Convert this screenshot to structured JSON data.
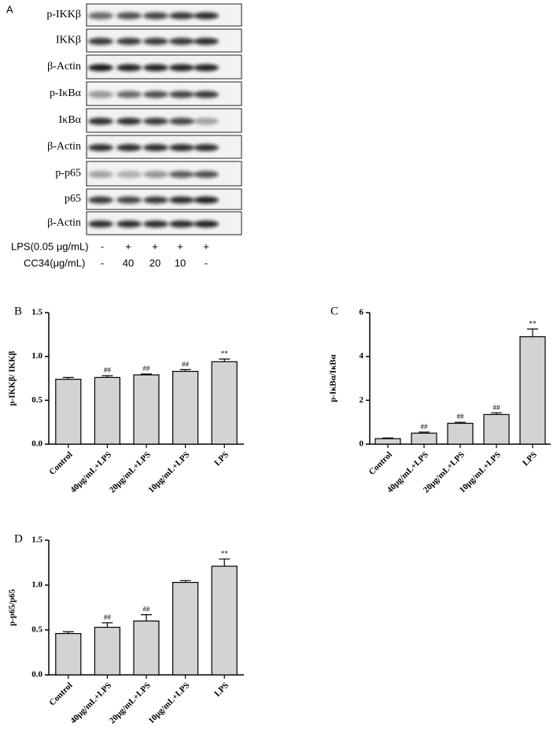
{
  "blot": {
    "panel": "A",
    "rows": [
      "p-IKKβ",
      "IKKβ",
      "β-Actin",
      "p-IκBα",
      "IκBα",
      "β-Actin",
      "p-p65",
      "p65",
      "β-Actin"
    ],
    "treatments": [
      {
        "label": "LPS(0.05 μg/mL)",
        "values": [
          "-",
          "+",
          "+",
          "+",
          "+"
        ]
      },
      {
        "label": "CC34(μg/mL)",
        "values": [
          "-",
          "40",
          "20",
          "10",
          "-"
        ]
      }
    ]
  },
  "chart_data": [
    {
      "type": "bar",
      "panel": "B",
      "y_label": "p-IKKβ/ IKKβ",
      "categories": [
        "Control",
        "40μg/mL+LPS",
        "20μg/mL+LPS",
        "10μg/mL+LPS",
        "LPS"
      ],
      "values": [
        0.74,
        0.76,
        0.79,
        0.83,
        0.94
      ],
      "errors": [
        0.02,
        0.02,
        0.01,
        0.02,
        0.03
      ],
      "annotations": [
        null,
        "##",
        "##",
        "##",
        "**"
      ],
      "color": "#d3d3d3",
      "ylim": [
        0,
        1.5
      ],
      "yticks": [
        {
          "value": 0,
          "label": "0.0"
        },
        0.5,
        {
          "value": 1,
          "label": "1.0"
        },
        1.5
      ]
    },
    {
      "type": "bar",
      "panel": "C",
      "y_label": "p-IκBα/IκBα",
      "categories": [
        "Control",
        "40μg/mL+LPS",
        "20μg/mL+LPS",
        "10μg/mL+LPS",
        "LPS"
      ],
      "values": [
        0.25,
        0.5,
        0.95,
        1.35,
        4.9
      ],
      "errors": [
        0.03,
        0.05,
        0.05,
        0.08,
        0.35
      ],
      "annotations": [
        null,
        "##",
        "##",
        "##",
        "**"
      ],
      "color": "#d3d3d3",
      "ylim": [
        0,
        6
      ],
      "yticks": [
        0,
        2,
        4,
        6
      ]
    },
    {
      "type": "bar",
      "panel": "D",
      "y_label": "p-p65/p65",
      "categories": [
        "Control",
        "40μg/mL+LPS",
        "20μg/mL+LPS",
        "10μg/mL+LPS",
        "LPS"
      ],
      "values": [
        0.46,
        0.53,
        0.6,
        1.03,
        1.21
      ],
      "errors": [
        0.02,
        0.05,
        0.07,
        0.02,
        0.08
      ],
      "annotations": [
        null,
        "##",
        "##",
        null,
        "**"
      ],
      "color": "#d3d3d3",
      "ylim": [
        0,
        1.5
      ],
      "yticks": [
        {
          "value": 0,
          "label": "0.0"
        },
        0.5,
        {
          "value": 1,
          "label": "1.0"
        },
        1.5
      ]
    }
  ]
}
